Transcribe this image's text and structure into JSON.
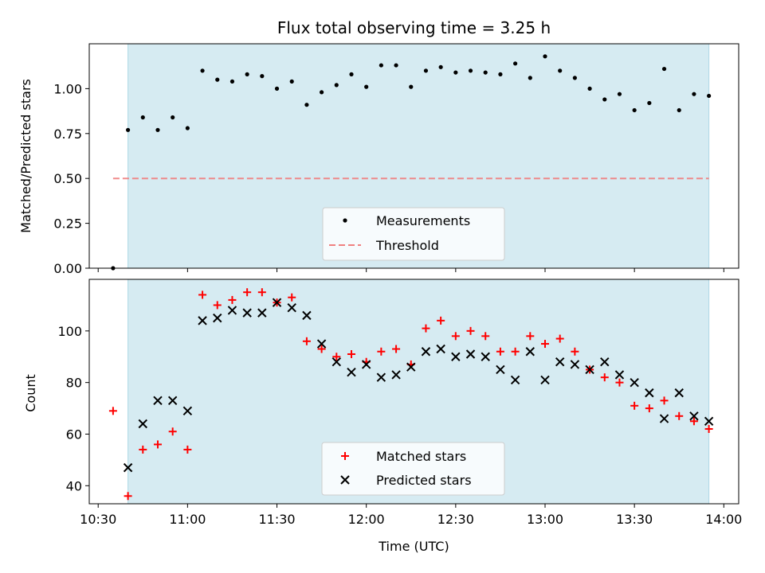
{
  "chart_data": [
    {
      "type": "scatter",
      "title": "Flux total observing time = 3.25 h",
      "xlabel": "",
      "ylabel": "Matched/Predicted stars",
      "xlim": [
        "10:27",
        "14:05"
      ],
      "ylim": [
        0,
        1.25
      ],
      "yticks": [
        0.0,
        0.25,
        0.5,
        0.75,
        1.0
      ],
      "ytick_labels": [
        "0.00",
        "0.25",
        "0.50",
        "0.75",
        "1.00"
      ],
      "shaded_span": [
        "10:40",
        "13:55"
      ],
      "shaded_color": "#add8e6",
      "legend_position": "lower center",
      "series": [
        {
          "name": "Measurements",
          "marker": "dot",
          "color": "#000000",
          "x": [
            "10:35",
            "10:40",
            "10:45",
            "10:50",
            "10:55",
            "11:00",
            "11:05",
            "11:10",
            "11:15",
            "11:20",
            "11:25",
            "11:30",
            "11:35",
            "11:40",
            "11:45",
            "11:50",
            "11:55",
            "12:00",
            "12:05",
            "12:10",
            "12:15",
            "12:20",
            "12:25",
            "12:30",
            "12:35",
            "12:40",
            "12:45",
            "12:50",
            "12:55",
            "13:00",
            "13:05",
            "13:10",
            "13:15",
            "13:20",
            "13:25",
            "13:30",
            "13:35",
            "13:40",
            "13:45",
            "13:50",
            "13:55"
          ],
          "y": [
            0.0,
            0.77,
            0.84,
            0.77,
            0.84,
            0.78,
            1.1,
            1.05,
            1.04,
            1.08,
            1.07,
            1.0,
            1.04,
            0.91,
            0.98,
            1.02,
            1.08,
            1.01,
            1.13,
            1.13,
            1.01,
            1.1,
            1.12,
            1.09,
            1.1,
            1.09,
            1.08,
            1.14,
            1.06,
            1.18,
            1.1,
            1.06,
            1.0,
            0.94,
            0.97,
            0.88,
            0.92,
            1.11,
            0.88,
            0.97,
            0.96
          ]
        },
        {
          "name": "Threshold",
          "marker": "dashed-line",
          "color": "#f08080",
          "x": [
            "10:35",
            "13:55"
          ],
          "y": [
            0.5,
            0.5
          ]
        }
      ]
    },
    {
      "type": "scatter",
      "title": "",
      "xlabel": "Time (UTC)",
      "ylabel": "Count",
      "xlim": [
        "10:27",
        "14:05"
      ],
      "ylim": [
        33,
        120
      ],
      "yticks": [
        40,
        60,
        80,
        100
      ],
      "ytick_labels": [
        "40",
        "60",
        "80",
        "100"
      ],
      "xticks": [
        "10:30",
        "11:00",
        "11:30",
        "12:00",
        "12:30",
        "13:00",
        "13:30",
        "14:00"
      ],
      "xtick_labels": [
        "10:30",
        "11:00",
        "11:30",
        "12:00",
        "12:30",
        "13:00",
        "13:30",
        "14:00"
      ],
      "shaded_span": [
        "10:40",
        "13:55"
      ],
      "shaded_color": "#add8e6",
      "legend_position": "lower center",
      "series": [
        {
          "name": "Matched stars",
          "marker": "plus",
          "color": "#ff0000",
          "x": [
            "10:35",
            "10:40",
            "10:45",
            "10:50",
            "10:55",
            "11:00",
            "11:05",
            "11:10",
            "11:15",
            "11:20",
            "11:25",
            "11:30",
            "11:35",
            "11:40",
            "11:45",
            "11:50",
            "11:55",
            "12:00",
            "12:05",
            "12:10",
            "12:15",
            "12:20",
            "12:25",
            "12:30",
            "12:35",
            "12:40",
            "12:45",
            "12:50",
            "12:55",
            "13:00",
            "13:05",
            "13:10",
            "13:15",
            "13:20",
            "13:25",
            "13:30",
            "13:35",
            "13:40",
            "13:45",
            "13:50",
            "13:55"
          ],
          "y": [
            69,
            36,
            54,
            56,
            61,
            54,
            114,
            110,
            112,
            115,
            115,
            111,
            113,
            96,
            93,
            90,
            91,
            88,
            92,
            93,
            87,
            101,
            104,
            98,
            100,
            98,
            92,
            92,
            98,
            95,
            97,
            92,
            85,
            82,
            80,
            71,
            70,
            73,
            67,
            65,
            62
          ]
        },
        {
          "name": "Predicted stars",
          "marker": "x",
          "color": "#000000",
          "x": [
            "10:40",
            "10:45",
            "10:50",
            "10:55",
            "11:00",
            "11:05",
            "11:10",
            "11:15",
            "11:20",
            "11:25",
            "11:30",
            "11:35",
            "11:40",
            "11:45",
            "11:50",
            "11:55",
            "12:00",
            "12:05",
            "12:10",
            "12:15",
            "12:20",
            "12:25",
            "12:30",
            "12:35",
            "12:40",
            "12:45",
            "12:50",
            "12:55",
            "13:00",
            "13:05",
            "13:10",
            "13:15",
            "13:20",
            "13:25",
            "13:30",
            "13:35",
            "13:40",
            "13:45",
            "13:50",
            "13:55"
          ],
          "y": [
            47,
            64,
            73,
            73,
            69,
            104,
            105,
            108,
            107,
            107,
            111,
            109,
            106,
            95,
            88,
            84,
            87,
            82,
            83,
            86,
            92,
            93,
            90,
            91,
            90,
            85,
            81,
            92,
            81,
            88,
            87,
            85,
            88,
            83,
            80,
            76,
            66,
            76,
            67,
            65
          ]
        }
      ]
    }
  ]
}
